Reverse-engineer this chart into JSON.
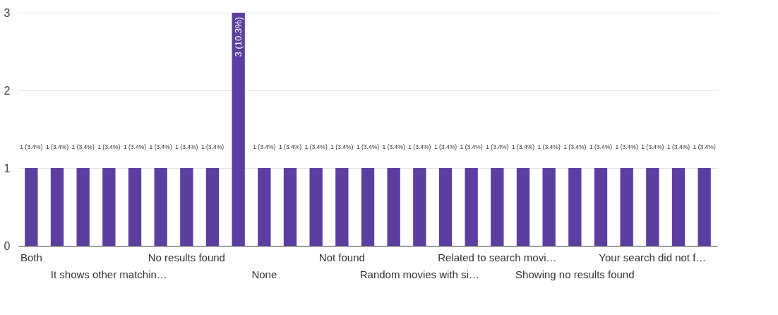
{
  "chart_data": {
    "type": "bar",
    "categories": [
      "Both",
      null,
      null,
      "It shows other matchin…",
      null,
      null,
      "No results found",
      null,
      null,
      "None",
      null,
      null,
      "Not found",
      null,
      null,
      "Random movies with si…",
      null,
      null,
      "Related to search movi…",
      null,
      null,
      "Showing no results found",
      null,
      null,
      "Your search did not f…",
      null,
      null
    ],
    "values": [
      1,
      1,
      1,
      1,
      1,
      1,
      1,
      1,
      3,
      1,
      1,
      1,
      1,
      1,
      1,
      1,
      1,
      1,
      1,
      1,
      1,
      1,
      1,
      1,
      1,
      1,
      1
    ],
    "value_labels": [
      "1 (3.4%)",
      "1 (3.4%)",
      "1 (3.4%)",
      "1 (3.4%)",
      "1 (3.4%)",
      "1 (3.4%)",
      "1 (3.4%)",
      "1 (3.4%)",
      "3 (10.3%)",
      "1 (3.4%)",
      "1 (3.4%)",
      "1 (3.4%)",
      "1 (3.4%)",
      "1 (3.4%)",
      "1 (3.4%)",
      "1 (3.4%)",
      "1 (3.4%)",
      "1 (3.4%)",
      "1 (3.4%)",
      "1 (3.4%)",
      "1 (3.4%)",
      "1 (3.4%)",
      "1 (3.4%)",
      "1 (3.4%)",
      "1 (3.4%)",
      "1 (3.4%)",
      "1 (3.4%)"
    ],
    "color": "#5c3ea1",
    "ylim": [
      0,
      3
    ],
    "yticks": [
      0,
      1,
      2,
      3
    ],
    "grid": "y"
  }
}
